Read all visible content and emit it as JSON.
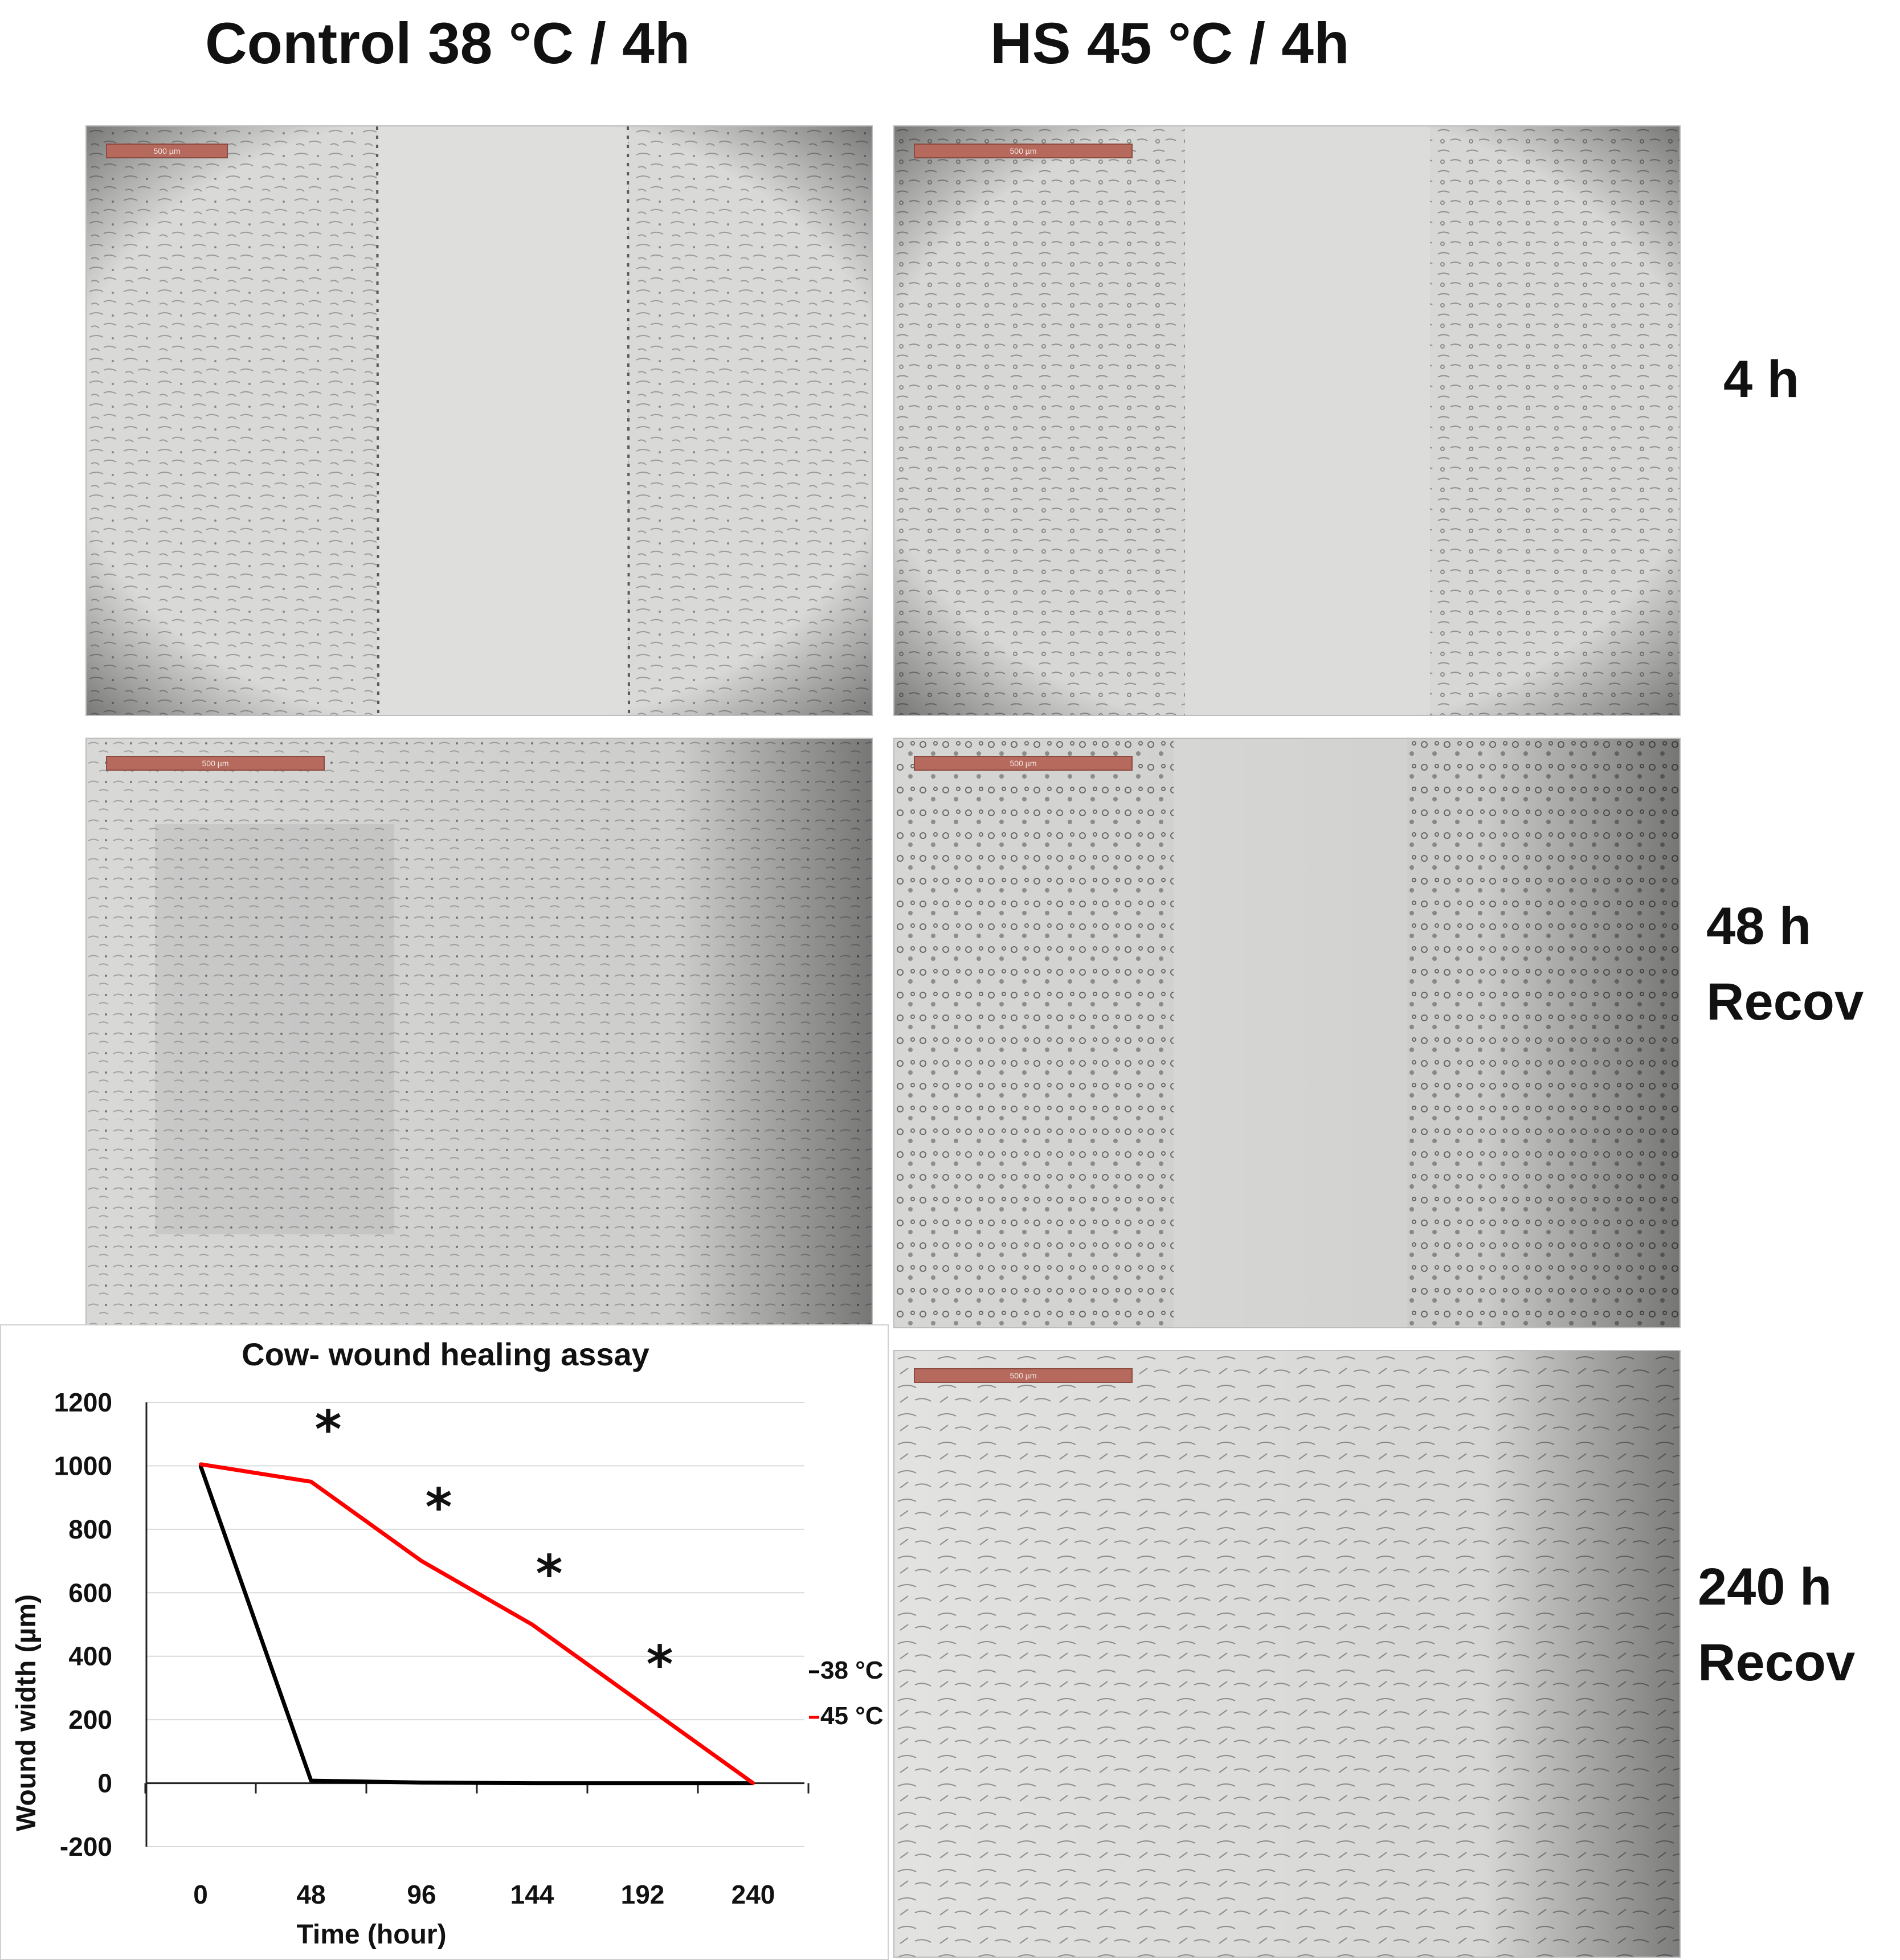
{
  "figure": {
    "col_headers": [
      "Control 38 °C / 4h",
      "HS 45 °C / 4h"
    ],
    "row_labels": [
      {
        "line1": "4 h",
        "line2": ""
      },
      {
        "line1": "48 h",
        "line2": "Recov"
      },
      {
        "line1": "240 h",
        "line2": "Recov"
      }
    ],
    "scale_bar_label": "500 µm",
    "panels": [
      {
        "name": "control-4h",
        "gap": "open"
      },
      {
        "name": "hs-4h",
        "gap": "open"
      },
      {
        "name": "control-48h",
        "gap": "closed"
      },
      {
        "name": "hs-48h",
        "gap": "narrowed"
      },
      {
        "name": "hs-240h",
        "gap": "closed"
      }
    ]
  },
  "colors": {
    "series_38": "#000000",
    "series_45": "#ff0000",
    "scalebar": "#b56a5d"
  },
  "chart_data": {
    "type": "line",
    "title": "Cow- wound healing assay",
    "xlabel": "Time (hour)",
    "ylabel": "Wound width (µm)",
    "x_ticks": [
      0,
      48,
      96,
      144,
      192,
      240
    ],
    "y_ticks": [
      -200,
      0,
      200,
      400,
      600,
      800,
      1000,
      1200
    ],
    "ylim": [
      -200,
      1200
    ],
    "xlim": [
      0,
      240
    ],
    "grid": "horizontal",
    "legend_position": "right",
    "series": [
      {
        "name": "38 °C",
        "color": "#000000",
        "x": [
          0,
          48,
          96,
          144,
          192,
          240
        ],
        "y": [
          1000,
          8,
          2,
          0,
          0,
          0
        ]
      },
      {
        "name": "45 °C",
        "color": "#ff0000",
        "x": [
          0,
          48,
          96,
          144,
          192,
          240
        ],
        "y": [
          1005,
          950,
          700,
          500,
          250,
          0
        ]
      }
    ],
    "annotations": [
      {
        "text": "*",
        "x": 48,
        "y": 1095
      },
      {
        "text": "*",
        "x": 96,
        "y": 850
      },
      {
        "text": "*",
        "x": 144,
        "y": 640
      },
      {
        "text": "*",
        "x": 192,
        "y": 355
      }
    ]
  }
}
